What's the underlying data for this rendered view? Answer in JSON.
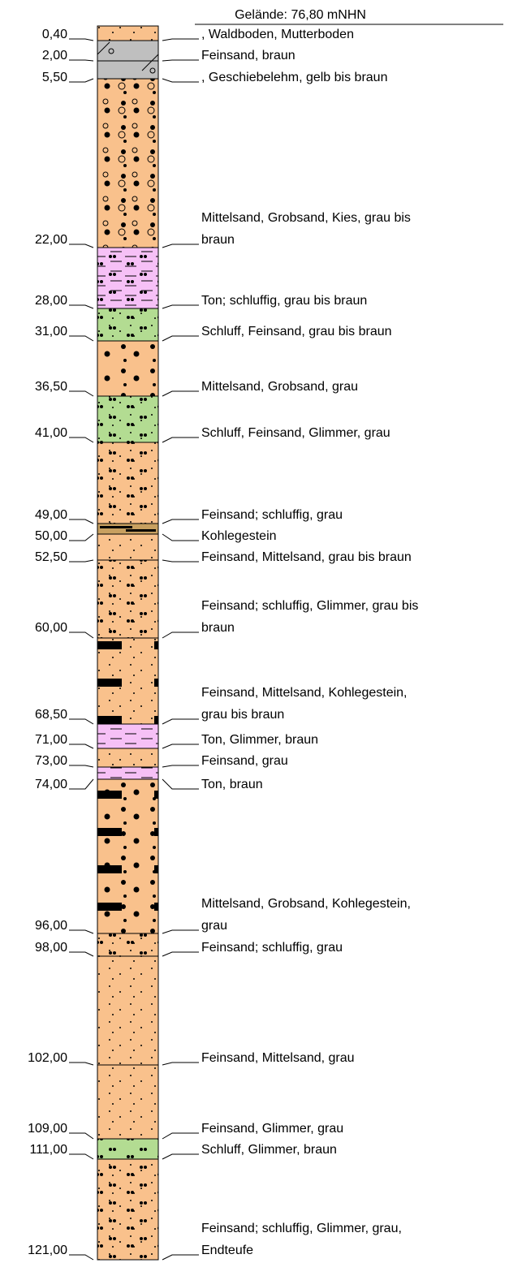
{
  "header": {
    "elevation": "Gelände: 76,80 mNHN"
  },
  "layers": [
    {
      "depth": "0,40",
      "description": [
        ", Waldboden, Mutterboden"
      ]
    },
    {
      "depth": "2,00",
      "description": [
        "Feinsand, braun"
      ]
    },
    {
      "depth": "5,50",
      "description": [
        ", Geschiebelehm, gelb bis braun"
      ]
    },
    {
      "depth": "22,00",
      "description": [
        "Mittelsand, Grobsand, Kies, grau bis",
        "braun"
      ]
    },
    {
      "depth": "28,00",
      "description": [
        "Ton; schluffig, grau bis braun"
      ]
    },
    {
      "depth": "31,00",
      "description": [
        "Schluff, Feinsand, grau bis braun"
      ]
    },
    {
      "depth": "36,50",
      "description": [
        "Mittelsand, Grobsand, grau"
      ]
    },
    {
      "depth": "41,00",
      "description": [
        "Schluff, Feinsand, Glimmer, grau"
      ]
    },
    {
      "depth": "49,00",
      "description": [
        "Feinsand; schluffig, grau"
      ]
    },
    {
      "depth": "50,00",
      "description": [
        "Kohlegestein"
      ]
    },
    {
      "depth": "52,50",
      "description": [
        "Feinsand, Mittelsand, grau bis braun"
      ]
    },
    {
      "depth": "60,00",
      "description": [
        "Feinsand; schluffig, Glimmer, grau bis",
        "braun"
      ]
    },
    {
      "depth": "68,50",
      "description": [
        "Feinsand, Mittelsand, Kohlegestein,",
        "grau bis braun"
      ]
    },
    {
      "depth": "71,00",
      "description": [
        "Ton, Glimmer, braun"
      ]
    },
    {
      "depth": "73,00",
      "description": [
        "Feinsand, grau"
      ]
    },
    {
      "depth": "74,00",
      "description": [
        "Ton, braun"
      ]
    },
    {
      "depth": "96,00",
      "description": [
        "Mittelsand, Grobsand, Kohlegestein,",
        "grau"
      ]
    },
    {
      "depth": "98,00",
      "description": [
        "Feinsand; schluffig, grau"
      ]
    },
    {
      "depth": "102,00",
      "description": [
        "Feinsand, Mittelsand, grau"
      ]
    },
    {
      "depth": "109,00",
      "description": [
        "Feinsand, Glimmer, grau"
      ]
    },
    {
      "depth": "111,00",
      "description": [
        "Schluff, Glimmer, braun"
      ]
    },
    {
      "depth": "121,00",
      "description": [
        "Feinsand; schluffig, Glimmer, grau,",
        "Endteufe"
      ]
    }
  ]
}
